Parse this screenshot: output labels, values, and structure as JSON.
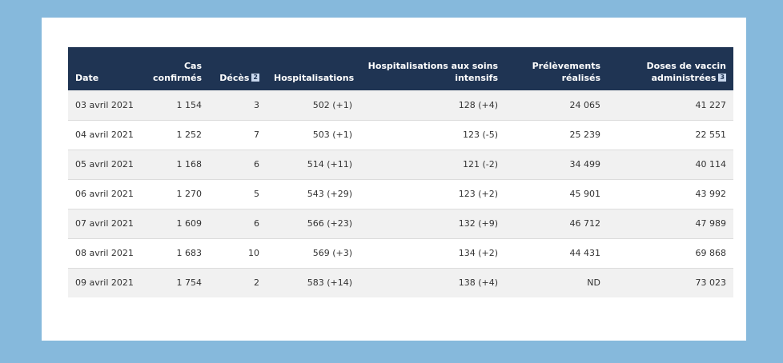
{
  "table": {
    "headers": {
      "date": "Date",
      "cas_line1": "Cas",
      "cas_line2": "confirmés",
      "deces": "Décès",
      "deces_note": "2",
      "hospitalisations": "Hospitalisations",
      "soins_line1": "Hospitalisations aux soins",
      "soins_line2": "intensifs",
      "prelev_line1": "Prélèvements",
      "prelev_line2": "réalisés",
      "doses_line1": "Doses de vaccin",
      "doses_line2": "administrées",
      "doses_note": "3"
    },
    "rows": [
      {
        "date": "03 avril 2021",
        "cas": "1 154",
        "deces": "3",
        "hosp": "502 (+1)",
        "soins": "128 (+4)",
        "prelev": "24 065",
        "doses": "41 227"
      },
      {
        "date": "04 avril 2021",
        "cas": "1 252",
        "deces": "7",
        "hosp": "503 (+1)",
        "soins": "123 (-5)",
        "prelev": "25 239",
        "doses": "22 551"
      },
      {
        "date": "05 avril 2021",
        "cas": "1 168",
        "deces": "6",
        "hosp": "514 (+11)",
        "soins": "121 (-2)",
        "prelev": "34 499",
        "doses": "40 114"
      },
      {
        "date": "06 avril 2021",
        "cas": "1 270",
        "deces": "5",
        "hosp": "543 (+29)",
        "soins": "123 (+2)",
        "prelev": "45 901",
        "doses": "43 992"
      },
      {
        "date": "07 avril 2021",
        "cas": "1 609",
        "deces": "6",
        "hosp": "566 (+23)",
        "soins": "132 (+9)",
        "prelev": "46 712",
        "doses": "47 989"
      },
      {
        "date": "08 avril 2021",
        "cas": "1 683",
        "deces": "10",
        "hosp": "569 (+3)",
        "soins": "134 (+2)",
        "prelev": "44 431",
        "doses": "69 868"
      },
      {
        "date": "09 avril 2021",
        "cas": "1 754",
        "deces": "2",
        "hosp": "583 (+14)",
        "soins": "138 (+4)",
        "prelev": "ND",
        "doses": "73 023"
      }
    ]
  },
  "colors": {
    "page_background": "#86b9dc",
    "header_background": "#1f3453",
    "row_stripe": "#f1f1f1",
    "footnote_badge": "#c9d8ee"
  }
}
